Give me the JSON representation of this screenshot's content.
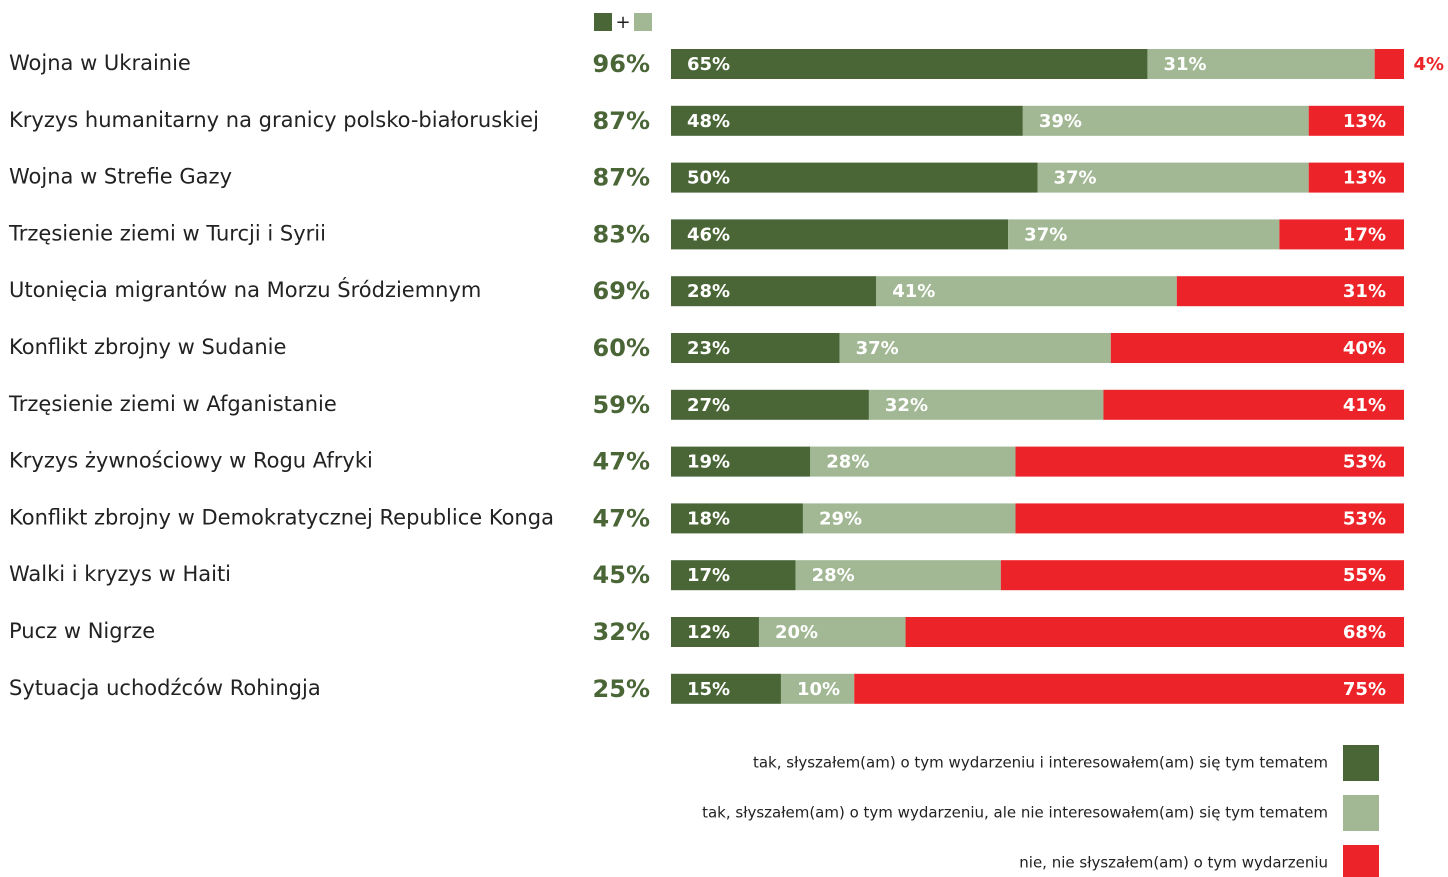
{
  "chart_data": {
    "type": "stacked_bar_horizontal",
    "orientation": "horizontal",
    "categories": [
      "Wojna w Ukrainie",
      "Kryzys humanitarny na granicy polsko-białoruskiej",
      "Wojna w Strefie Gazy",
      "Trzęsienie ziemi w Turcji i Syrii",
      "Utonięcia migrantów na Morzu Śródziemnym",
      "Konflikt zbrojny w Sudanie",
      "Trzęsienie ziemi w Afganistanie",
      "Kryzys żywnościowy w Rogu Afryki",
      "Konflikt zbrojny w Demokratycznej Republice Konga",
      "Walki i kryzys w Haiti",
      "Pucz w Nigrze",
      "Sytuacja uchodźców  Rohingja"
    ],
    "xlim": [
      0,
      100
    ],
    "series": [
      {
        "name": "tak, słyszałem(am) o tym wydarzeniu i interesowałem(am) się tym tematem",
        "color": "#4a6637",
        "values": [
          65,
          48,
          50,
          46,
          28,
          23,
          27,
          19,
          18,
          17,
          12,
          15
        ],
        "value_labels": [
          "65%",
          "48%",
          "50%",
          "46%",
          "28%",
          "23%",
          "27%",
          "19%",
          "18%",
          "17%",
          "12%",
          "15%"
        ]
      },
      {
        "name": "tak, słyszałem(am) o tym wydarzeniu, ale nie interesowałem(am) się tym tematem",
        "color": "#a2b894",
        "values": [
          31,
          39,
          37,
          37,
          41,
          37,
          32,
          28,
          29,
          28,
          20,
          10
        ],
        "value_labels": [
          "31%",
          "39%",
          "37%",
          "37%",
          "41%",
          "37%",
          "32%",
          "28%",
          "29%",
          "28%",
          "20%",
          "10%"
        ]
      },
      {
        "name": "nie, nie słyszałem(am) o tym wydarzeniu",
        "color": "#ec2328",
        "values": [
          4,
          13,
          13,
          17,
          31,
          40,
          41,
          53,
          53,
          55,
          68,
          75
        ],
        "value_labels": [
          "4%",
          "13%",
          "13%",
          "17%",
          "31%",
          "40%",
          "41%",
          "53%",
          "53%",
          "55%",
          "68%",
          "75%"
        ]
      }
    ],
    "totals_header": "+",
    "totals": {
      "values": [
        96,
        87,
        87,
        83,
        69,
        60,
        59,
        47,
        47,
        45,
        32,
        25
      ],
      "value_labels": [
        "96%",
        "87%",
        "87%",
        "83%",
        "69%",
        "60%",
        "59%",
        "47%",
        "47%",
        "45%",
        "32%",
        "25%"
      ]
    }
  }
}
